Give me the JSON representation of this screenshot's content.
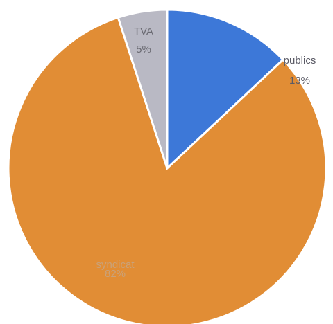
{
  "chart_data": {
    "type": "pie",
    "slices": [
      {
        "label": "publics",
        "value": 13,
        "value_label": "13%",
        "color": "#3d78d8"
      },
      {
        "label": "syndicat",
        "value": 82,
        "value_label": "82%",
        "color": "#e18d35"
      },
      {
        "label": "TVA",
        "value": 5,
        "value_label": "5%",
        "color": "#b9b9c4"
      }
    ],
    "label_colors": {
      "publics": "#5b5b66",
      "syndicat": "#c9a27a",
      "TVA": "#6a6a72"
    }
  }
}
